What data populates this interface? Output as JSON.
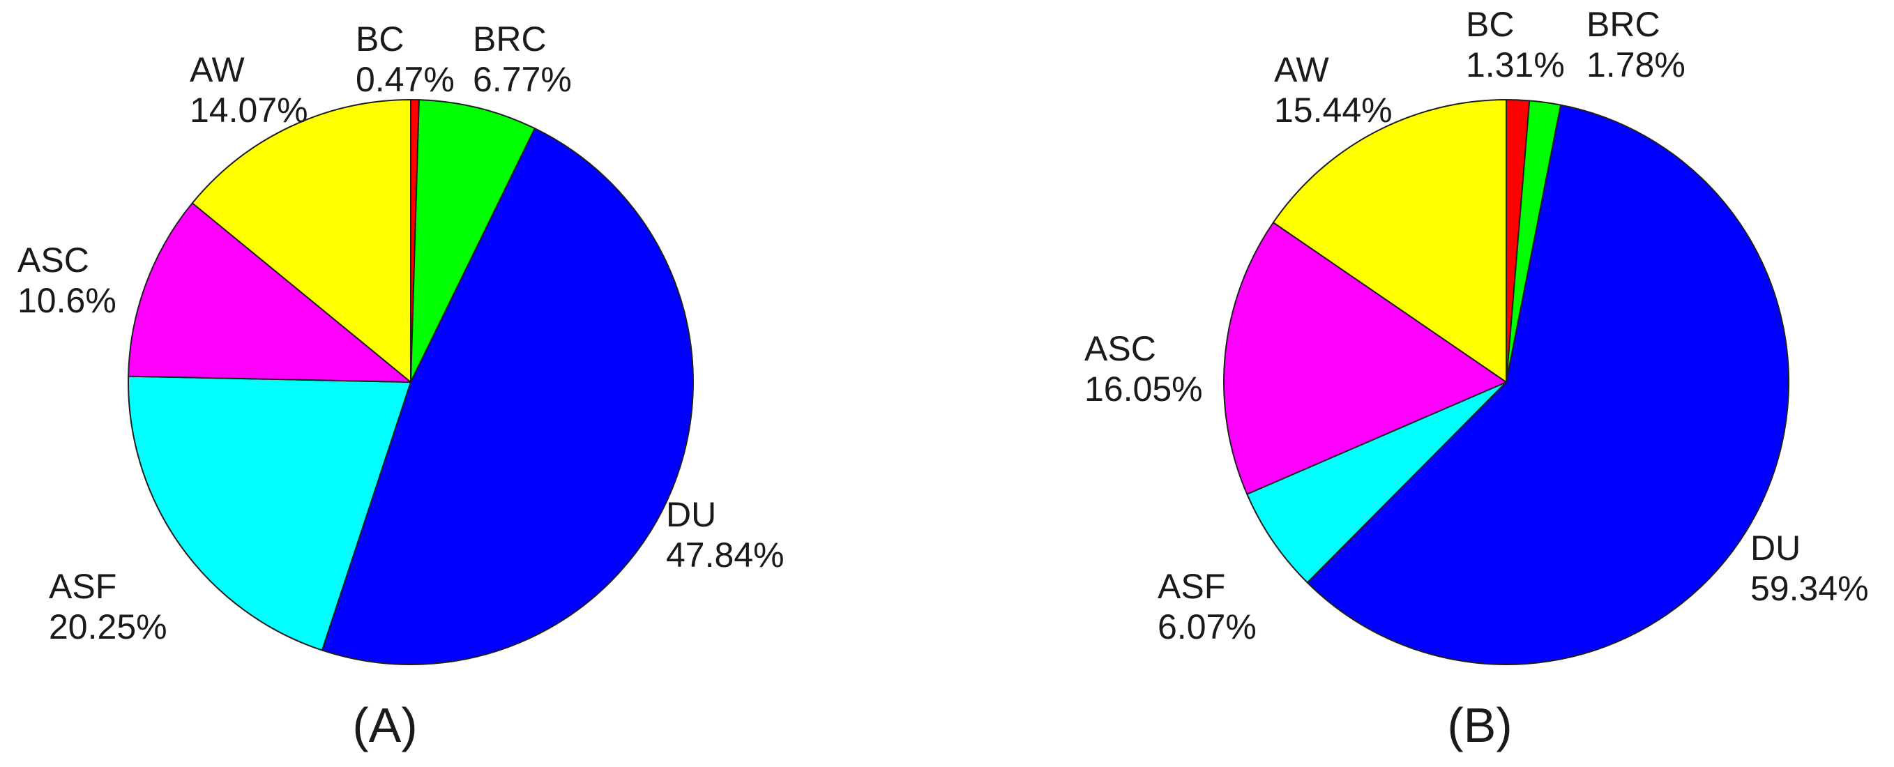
{
  "chart_data": [
    {
      "type": "pie",
      "panel_label": "(A)",
      "slices": [
        {
          "label": "BC",
          "value": 0.47,
          "value_label": "0.47%",
          "color": "#ff0000"
        },
        {
          "label": "BRC",
          "value": 6.77,
          "value_label": "6.77%",
          "color": "#00ff00"
        },
        {
          "label": "DU",
          "value": 47.84,
          "value_label": "47.84%",
          "color": "#0000ff"
        },
        {
          "label": "ASF",
          "value": 20.25,
          "value_label": "20.25%",
          "color": "#00ffff"
        },
        {
          "label": "ASC",
          "value": 10.6,
          "value_label": "10.6%",
          "color": "#ff00ff"
        },
        {
          "label": "AW",
          "value": 14.07,
          "value_label": "14.07%",
          "color": "#ffff00"
        }
      ]
    },
    {
      "type": "pie",
      "panel_label": "(B)",
      "slices": [
        {
          "label": "BC",
          "value": 1.31,
          "value_label": "1.31%",
          "color": "#ff0000"
        },
        {
          "label": "BRC",
          "value": 1.78,
          "value_label": "1.78%",
          "color": "#00ff00"
        },
        {
          "label": "DU",
          "value": 59.34,
          "value_label": "59.34%",
          "color": "#0000ff"
        },
        {
          "label": "ASF",
          "value": 6.07,
          "value_label": "6.07%",
          "color": "#00ffff"
        },
        {
          "label": "ASC",
          "value": 16.05,
          "value_label": "16.05%",
          "color": "#ff00ff"
        },
        {
          "label": "AW",
          "value": 15.44,
          "value_label": "15.44%",
          "color": "#ffff00"
        }
      ]
    }
  ]
}
